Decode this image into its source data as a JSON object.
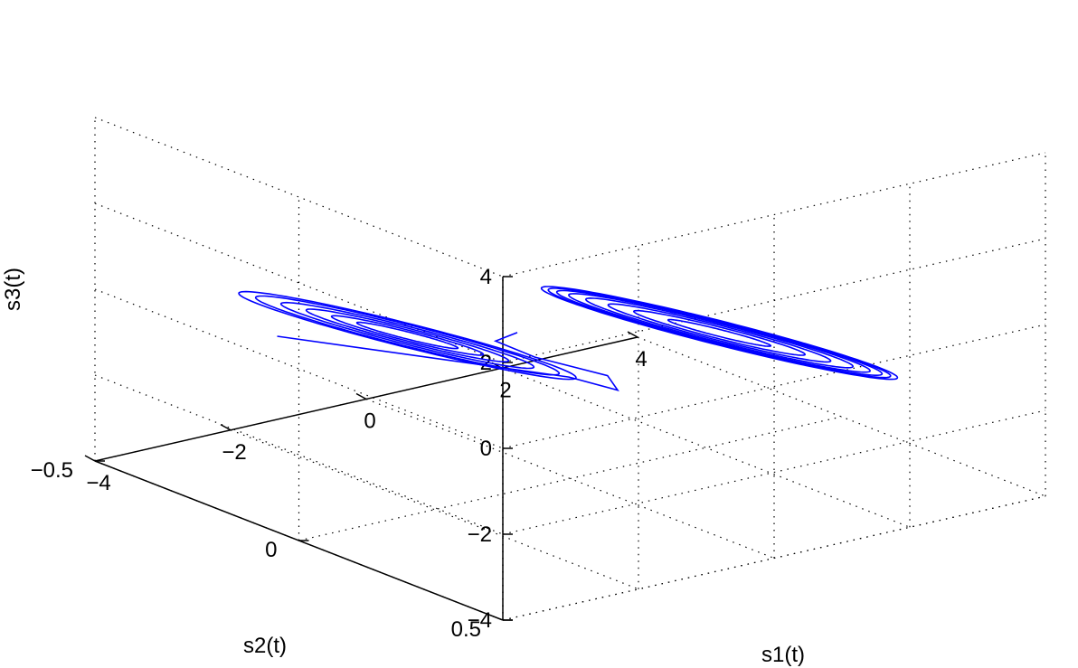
{
  "chart_data": {
    "type": "line3d",
    "title": "",
    "xlabel": "s1(t)",
    "ylabel": "s2(t)",
    "zlabel": "s3(t)",
    "xlim": [
      -4,
      4
    ],
    "ylim": [
      -0.5,
      0.5
    ],
    "zlim": [
      -4,
      4
    ],
    "xticks": [
      -4,
      -2,
      0,
      2,
      4
    ],
    "xtick_labels": [
      "−4",
      "−2",
      "0",
      "2",
      "4"
    ],
    "yticks": [
      -0.5,
      0,
      0.5
    ],
    "ytick_labels": [
      "−0.5",
      "0",
      "0.5"
    ],
    "zticks": [
      -4,
      -2,
      0,
      2,
      4
    ],
    "ztick_labels": [
      "−4",
      "−2",
      "0",
      "2",
      "4"
    ],
    "grid": true,
    "box": false,
    "series_color": "#0000ff",
    "series": [
      {
        "description": "double-scroll chaotic trajectory",
        "points": [
          [
            -4.5,
            0.03,
            1.05
          ],
          [
            -0.2,
            0.03,
            -1.45
          ],
          [
            0.4,
            0.05,
            -1.9
          ],
          [
            0.55,
            0.0,
            -1.8
          ],
          [
            -0.4,
            -0.02,
            -1.1
          ],
          [
            -1.1,
            0.0,
            -0.4
          ],
          [
            -0.9,
            0.02,
            -0.2
          ]
        ],
        "attractors": [
          {
            "center": [
              -2.4,
              0.0,
              0.2
            ],
            "half_length": [
              1.9,
              0.0,
              -1.25
            ],
            "half_width": [
              0.1,
              0.25,
              0.04
            ],
            "loops": [
              0.3,
              0.45,
              0.6,
              0.75,
              0.9,
              1.0
            ]
          },
          {
            "center": [
              2.2,
              0.0,
              -1.4
            ],
            "half_length": [
              1.95,
              0.0,
              -1.3
            ],
            "half_width": [
              0.1,
              0.25,
              0.04
            ],
            "loops": [
              0.3,
              0.5,
              0.65,
              0.78,
              0.88,
              0.95,
              1.0,
              1.04
            ]
          }
        ]
      }
    ]
  }
}
